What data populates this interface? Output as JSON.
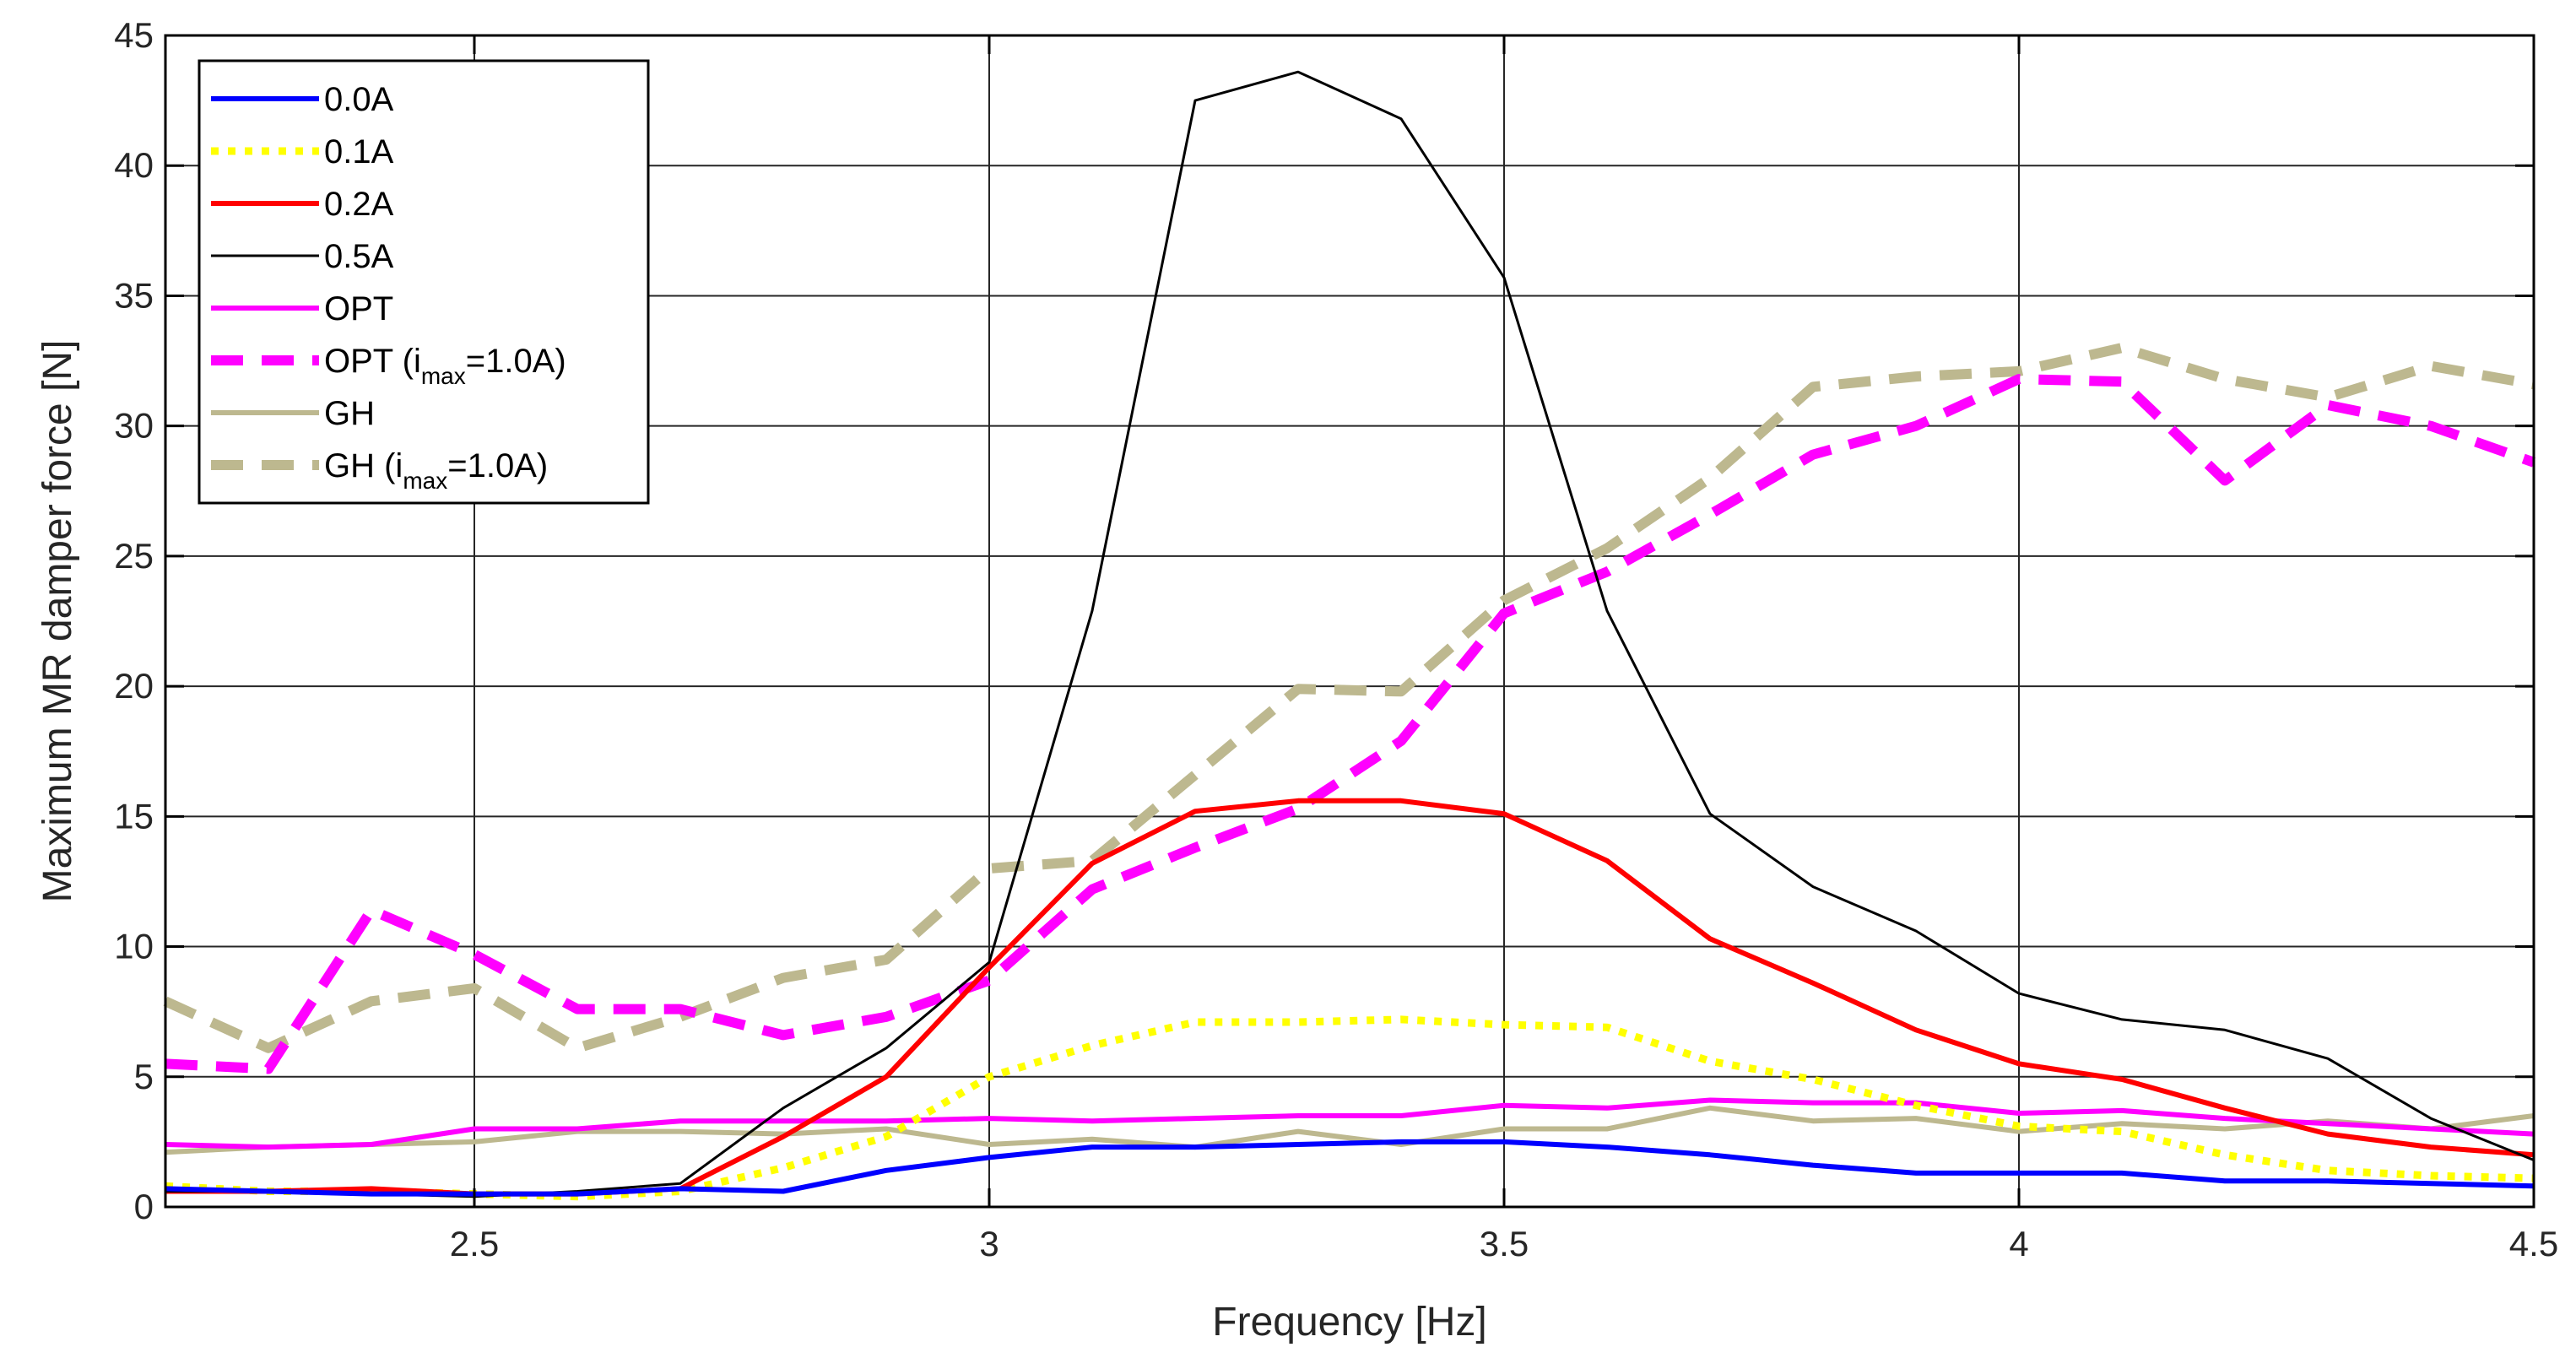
{
  "chart_data": {
    "type": "line",
    "title": "",
    "xlabel": "Frequency [Hz]",
    "ylabel": "Maximum MR damper force [N]",
    "xlim": [
      2.2,
      4.5
    ],
    "ylim": [
      0,
      45
    ],
    "grid": true,
    "legend_position": "top-left",
    "xticks": [
      2.5,
      3,
      3.5,
      4,
      4.5
    ],
    "xtick_labels": [
      "2.5",
      "3",
      "3.5",
      "4",
      "4.5"
    ],
    "yticks": [
      0,
      5,
      10,
      15,
      20,
      25,
      30,
      35,
      40,
      45
    ],
    "ytick_labels": [
      "0",
      "5",
      "10",
      "15",
      "20",
      "25",
      "30",
      "35",
      "40",
      "45"
    ],
    "x": [
      2.2,
      2.3,
      2.4,
      2.5,
      2.6,
      2.7,
      2.8,
      2.9,
      3.0,
      3.1,
      3.2,
      3.3,
      3.4,
      3.5,
      3.6,
      3.7,
      3.8,
      3.9,
      4.0,
      4.1,
      4.2,
      4.3,
      4.4,
      4.5
    ],
    "series": [
      {
        "name": "0.0A",
        "legend_main": "0.0A",
        "legend_sub": "",
        "legend_tail": "",
        "color": "#0000ff",
        "style": "solid",
        "values": [
          0.7,
          0.6,
          0.5,
          0.5,
          0.5,
          0.7,
          0.6,
          1.4,
          1.9,
          2.3,
          2.3,
          2.4,
          2.5,
          2.5,
          2.3,
          2.0,
          1.6,
          1.3,
          1.3,
          1.3,
          1.0,
          1.0,
          0.9,
          0.8
        ]
      },
      {
        "name": "0.1A",
        "legend_main": "0.1A",
        "legend_sub": "",
        "legend_tail": "",
        "color": "#ffff00",
        "style": "dotted",
        "values": [
          0.8,
          0.6,
          0.6,
          0.5,
          0.4,
          0.6,
          1.5,
          2.7,
          5.0,
          6.2,
          7.1,
          7.1,
          7.2,
          7.0,
          6.9,
          5.6,
          4.9,
          3.9,
          3.1,
          2.9,
          2.0,
          1.4,
          1.2,
          1.1
        ]
      },
      {
        "name": "0.2A",
        "legend_main": "0.2A",
        "legend_sub": "",
        "legend_tail": "",
        "color": "#ff0000",
        "style": "solid",
        "values": [
          0.6,
          0.6,
          0.7,
          0.5,
          0.5,
          0.7,
          2.7,
          5.0,
          9.2,
          13.2,
          15.2,
          15.6,
          15.6,
          15.1,
          13.3,
          10.3,
          8.6,
          6.8,
          5.5,
          4.9,
          3.8,
          2.8,
          2.3,
          2.0
        ]
      },
      {
        "name": "0.5A",
        "legend_main": "0.5A",
        "legend_sub": "",
        "legend_tail": "",
        "color": "#000000",
        "style": "thin",
        "values": [
          0.6,
          0.6,
          0.5,
          0.4,
          0.6,
          0.9,
          3.8,
          6.1,
          9.4,
          22.9,
          42.5,
          43.6,
          41.8,
          35.7,
          22.9,
          15.1,
          12.3,
          10.6,
          8.2,
          7.2,
          6.8,
          5.7,
          3.4,
          1.8
        ]
      },
      {
        "name": "OPT",
        "legend_main": "OPT",
        "legend_sub": "",
        "legend_tail": "",
        "color": "#ff00ff",
        "style": "solid",
        "values": [
          2.4,
          2.3,
          2.4,
          3.0,
          3.0,
          3.3,
          3.3,
          3.3,
          3.4,
          3.3,
          3.4,
          3.5,
          3.5,
          3.9,
          3.8,
          4.1,
          4.0,
          4.0,
          3.6,
          3.7,
          3.4,
          3.2,
          3.0,
          2.8
        ]
      },
      {
        "name": "OPT (imax=1.0A)",
        "legend_main": "OPT (i",
        "legend_sub": "max",
        "legend_tail": "=1.0A)",
        "color": "#ff00ff",
        "style": "dashed",
        "values": [
          5.5,
          5.3,
          11.4,
          9.7,
          7.6,
          7.6,
          6.6,
          7.3,
          8.7,
          12.2,
          13.8,
          15.3,
          17.9,
          22.8,
          24.4,
          26.6,
          28.9,
          30.0,
          31.8,
          31.7,
          27.9,
          30.8,
          30.0,
          28.6
        ]
      },
      {
        "name": "GH",
        "legend_main": "GH",
        "legend_sub": "",
        "legend_tail": "",
        "color": "#bdb88f",
        "style": "solid",
        "values": [
          2.1,
          2.3,
          2.4,
          2.5,
          2.9,
          2.9,
          2.8,
          3.0,
          2.4,
          2.6,
          2.3,
          2.9,
          2.4,
          3.0,
          3.0,
          3.8,
          3.3,
          3.4,
          2.9,
          3.2,
          3.0,
          3.3,
          3.0,
          3.5
        ]
      },
      {
        "name": "GH (imax=1.0A)",
        "legend_main": "GH (i",
        "legend_sub": "max",
        "legend_tail": "=1.0A)",
        "color": "#bdb88f",
        "style": "dashed",
        "values": [
          7.9,
          6.1,
          7.9,
          8.4,
          6.1,
          7.3,
          8.8,
          9.5,
          13.0,
          13.3,
          16.6,
          19.9,
          19.8,
          23.3,
          25.3,
          28.0,
          31.5,
          31.9,
          32.1,
          33.0,
          31.8,
          31.1,
          32.3,
          31.6
        ]
      }
    ]
  }
}
